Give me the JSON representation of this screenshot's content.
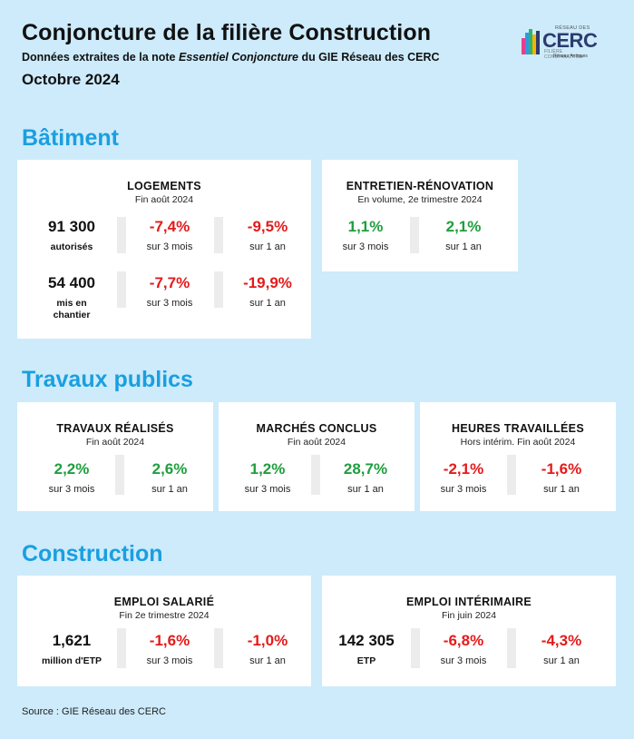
{
  "header": {
    "title": "Conjoncture de la filière Construction",
    "subtitle_pre": "Données extraites de la note ",
    "subtitle_em": "Essentiel Conjoncture",
    "subtitle_post": " du GIE Réseau des CERC",
    "date": "Octobre 2024"
  },
  "logo": {
    "top_text": "RÉSEAU DES",
    "name": "CERC",
    "mid_text": "FILIÈRE CONSTRUCTION",
    "bottom_text": "Réseau Antiques",
    "colors": [
      "#e83e8c",
      "#2e9be0",
      "#2fb56b",
      "#f4b400",
      "#2e3b6e"
    ]
  },
  "sections": {
    "batiment": "Bâtiment",
    "travaux_publics": "Travaux publics",
    "construction": "Construction"
  },
  "logements": {
    "title": "LOGEMENTS",
    "subtitle": "Fin août 2024",
    "row1": {
      "num": "91 300",
      "unit": "autorisés",
      "v1": "-7,4%",
      "l1": "sur 3 mois",
      "v2": "-9,5%",
      "l2": "sur 1 an"
    },
    "row2": {
      "num": "54 400",
      "unit": "mis en chantier",
      "v1": "-7,7%",
      "l1": "sur 3 mois",
      "v2": "-19,9%",
      "l2": "sur 1 an"
    }
  },
  "entretien": {
    "title": "ENTRETIEN-RÉNOVATION",
    "subtitle": "En volume, 2e trimestre 2024",
    "v1": "1,1%",
    "l1": "sur 3 mois",
    "v2": "2,1%",
    "l2": "sur 1 an"
  },
  "travaux_realises": {
    "title": "TRAVAUX RÉALISÉS",
    "subtitle": "Fin août 2024",
    "v1": "2,2%",
    "l1": "sur 3 mois",
    "v2": "2,6%",
    "l2": "sur 1 an"
  },
  "marches": {
    "title": "MARCHÉS CONCLUS",
    "subtitle": "Fin août 2024",
    "v1": "1,2%",
    "l1": "sur 3 mois",
    "v2": "28,7%",
    "l2": "sur 1 an"
  },
  "heures": {
    "title": "HEURES TRAVAILLÉES",
    "subtitle": "Hors intérim. Fin août 2024",
    "v1": "-2,1%",
    "l1": "sur 3 mois",
    "v2": "-1,6%",
    "l2": "sur 1 an"
  },
  "emploi_salarie": {
    "title": "EMPLOI SALARIÉ",
    "subtitle": "Fin 2e trimestre 2024",
    "num": "1,621",
    "unit": "million d'ETP",
    "v1": "-1,6%",
    "l1": "sur 3 mois",
    "v2": "-1,0%",
    "l2": "sur 1 an"
  },
  "emploi_interim": {
    "title": "EMPLOI INTÉRIMAIRE",
    "subtitle": "Fin juin 2024",
    "num": "142 305",
    "unit": "ETP",
    "v1": "-6,8%",
    "l1": "sur 3 mois",
    "v2": "-4,3%",
    "l2": "sur 1 an"
  },
  "source": "Source : GIE Réseau des CERC",
  "colors": {
    "positive": "#1f9e3e",
    "negative": "#e51a1a",
    "section": "#1a9fe0",
    "background": "#cdebfb"
  }
}
